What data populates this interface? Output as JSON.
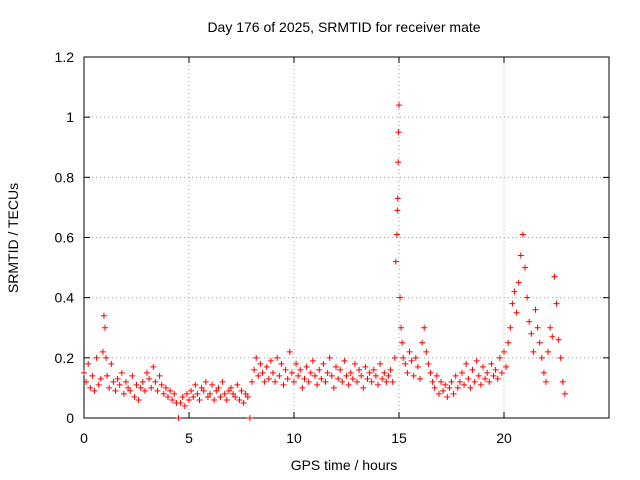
{
  "chart_data": {
    "type": "scatter",
    "title": "Day 176 of 2025, SRMTID for receiver mate",
    "xlabel": "GPS time / hours",
    "ylabel": "SRMTID / TECUs",
    "xlim": [
      0,
      25
    ],
    "ylim": [
      0,
      1.2
    ],
    "xticks": [
      0,
      5,
      10,
      15,
      20
    ],
    "xtick_labels": [
      "0",
      "5",
      "10",
      "15",
      "20"
    ],
    "yticks": [
      0,
      0.2,
      0.4,
      0.6,
      0.8,
      1,
      1.2
    ],
    "ytick_labels": [
      "0",
      "0.2",
      "0.4",
      "0.6",
      "0.8",
      "1",
      "1.2"
    ],
    "grid": true,
    "marker": "+",
    "series_color": "#ff0000",
    "series": [
      {
        "name": "SRMTID",
        "x": [
          0.0,
          0.1,
          0.2,
          0.3,
          0.4,
          0.5,
          0.6,
          0.7,
          0.8,
          0.9,
          0.95,
          1.0,
          1.05,
          1.1,
          1.2,
          1.3,
          1.4,
          1.5,
          1.6,
          1.7,
          1.8,
          1.9,
          2.0,
          2.1,
          2.2,
          2.3,
          2.4,
          2.5,
          2.6,
          2.7,
          2.8,
          2.9,
          3.0,
          3.1,
          3.2,
          3.3,
          3.4,
          3.5,
          3.6,
          3.7,
          3.8,
          3.9,
          4.0,
          4.1,
          4.2,
          4.3,
          4.4,
          4.5,
          4.6,
          4.7,
          4.8,
          4.9,
          5.0,
          5.1,
          5.2,
          5.3,
          5.4,
          5.5,
          5.6,
          5.7,
          5.8,
          5.9,
          6.0,
          6.1,
          6.2,
          6.3,
          6.4,
          6.5,
          6.6,
          6.7,
          6.8,
          6.9,
          7.0,
          7.1,
          7.2,
          7.3,
          7.4,
          7.5,
          7.6,
          7.7,
          7.8,
          7.9,
          8.0,
          8.1,
          8.2,
          8.3,
          8.4,
          8.5,
          8.6,
          8.7,
          8.8,
          8.9,
          9.0,
          9.1,
          9.2,
          9.3,
          9.4,
          9.5,
          9.6,
          9.7,
          9.8,
          9.9,
          10.0,
          10.1,
          10.2,
          10.3,
          10.4,
          10.5,
          10.6,
          10.7,
          10.8,
          10.9,
          11.0,
          11.1,
          11.2,
          11.3,
          11.4,
          11.5,
          11.6,
          11.7,
          11.8,
          11.9,
          12.0,
          12.1,
          12.2,
          12.3,
          12.4,
          12.5,
          12.6,
          12.7,
          12.8,
          12.9,
          13.0,
          13.1,
          13.2,
          13.3,
          13.4,
          13.5,
          13.6,
          13.7,
          13.8,
          13.9,
          14.0,
          14.1,
          14.2,
          14.3,
          14.4,
          14.5,
          14.6,
          14.7,
          14.8,
          14.85,
          14.9,
          14.92,
          14.94,
          14.96,
          14.98,
          15.0,
          15.05,
          15.1,
          15.15,
          15.2,
          15.3,
          15.4,
          15.5,
          15.6,
          15.7,
          15.8,
          15.9,
          16.0,
          16.1,
          16.2,
          16.3,
          16.4,
          16.5,
          16.6,
          16.7,
          16.8,
          16.9,
          17.0,
          17.1,
          17.2,
          17.3,
          17.4,
          17.5,
          17.6,
          17.7,
          17.8,
          17.9,
          18.0,
          18.1,
          18.2,
          18.3,
          18.4,
          18.5,
          18.6,
          18.7,
          18.8,
          18.9,
          19.0,
          19.1,
          19.2,
          19.3,
          19.4,
          19.5,
          19.6,
          19.7,
          19.8,
          19.9,
          20.0,
          20.1,
          20.2,
          20.3,
          20.4,
          20.5,
          20.6,
          20.7,
          20.8,
          20.9,
          21.0,
          21.1,
          21.2,
          21.3,
          21.4,
          21.5,
          21.6,
          21.7,
          21.8,
          21.9,
          22.0,
          22.1,
          22.2,
          22.3,
          22.4,
          22.5,
          22.6,
          22.7,
          22.8,
          22.9
        ],
        "y": [
          0.15,
          0.12,
          0.18,
          0.1,
          0.14,
          0.09,
          0.2,
          0.11,
          0.13,
          0.22,
          0.34,
          0.3,
          0.2,
          0.14,
          0.1,
          0.18,
          0.12,
          0.09,
          0.13,
          0.11,
          0.15,
          0.08,
          0.12,
          0.1,
          0.09,
          0.14,
          0.07,
          0.11,
          0.06,
          0.1,
          0.12,
          0.09,
          0.15,
          0.13,
          0.1,
          0.17,
          0.12,
          0.09,
          0.14,
          0.11,
          0.08,
          0.1,
          0.07,
          0.09,
          0.06,
          0.08,
          0.05,
          0.0,
          0.05,
          0.07,
          0.04,
          0.08,
          0.06,
          0.09,
          0.07,
          0.11,
          0.08,
          0.06,
          0.1,
          0.09,
          0.12,
          0.07,
          0.08,
          0.11,
          0.06,
          0.09,
          0.1,
          0.07,
          0.12,
          0.08,
          0.06,
          0.09,
          0.1,
          0.08,
          0.07,
          0.11,
          0.06,
          0.09,
          0.05,
          0.08,
          0.07,
          0.0,
          0.12,
          0.16,
          0.2,
          0.14,
          0.18,
          0.15,
          0.12,
          0.17,
          0.13,
          0.19,
          0.15,
          0.12,
          0.2,
          0.14,
          0.18,
          0.11,
          0.16,
          0.13,
          0.22,
          0.15,
          0.12,
          0.18,
          0.14,
          0.16,
          0.1,
          0.13,
          0.17,
          0.12,
          0.15,
          0.19,
          0.14,
          0.11,
          0.16,
          0.13,
          0.18,
          0.12,
          0.15,
          0.2,
          0.14,
          0.1,
          0.17,
          0.13,
          0.16,
          0.12,
          0.19,
          0.14,
          0.11,
          0.15,
          0.13,
          0.18,
          0.12,
          0.16,
          0.14,
          0.1,
          0.17,
          0.13,
          0.15,
          0.12,
          0.16,
          0.14,
          0.11,
          0.18,
          0.13,
          0.15,
          0.12,
          0.14,
          0.16,
          0.12,
          0.2,
          0.52,
          0.61,
          0.69,
          0.73,
          0.85,
          0.95,
          1.04,
          0.4,
          0.3,
          0.25,
          0.2,
          0.18,
          0.15,
          0.22,
          0.19,
          0.14,
          0.2,
          0.17,
          0.13,
          0.25,
          0.3,
          0.22,
          0.18,
          0.15,
          0.12,
          0.1,
          0.14,
          0.08,
          0.12,
          0.09,
          0.11,
          0.07,
          0.1,
          0.12,
          0.08,
          0.14,
          0.1,
          0.12,
          0.15,
          0.11,
          0.18,
          0.13,
          0.1,
          0.16,
          0.12,
          0.19,
          0.14,
          0.11,
          0.17,
          0.13,
          0.15,
          0.12,
          0.18,
          0.14,
          0.16,
          0.13,
          0.2,
          0.15,
          0.22,
          0.17,
          0.25,
          0.3,
          0.38,
          0.42,
          0.35,
          0.45,
          0.54,
          0.61,
          0.5,
          0.4,
          0.32,
          0.28,
          0.22,
          0.36,
          0.3,
          0.25,
          0.2,
          0.15,
          0.12,
          0.22,
          0.3,
          0.27,
          0.47,
          0.38,
          0.26,
          0.2,
          0.12,
          0.08
        ]
      }
    ]
  }
}
